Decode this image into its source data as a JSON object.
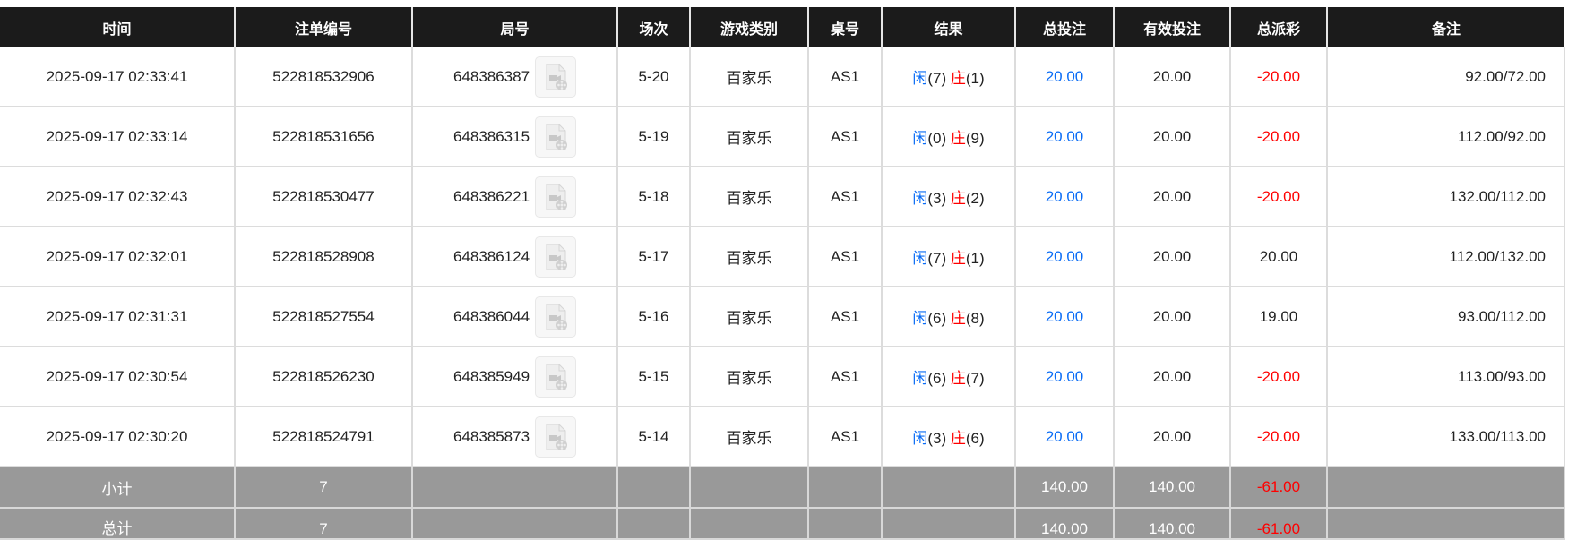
{
  "headers": [
    "时间",
    "注单编号",
    "局号",
    "场次",
    "游戏类别",
    "桌号",
    "结果",
    "总投注",
    "有效投注",
    "总派彩",
    "备注"
  ],
  "colors": {
    "header_bg": "#1b1b1b",
    "player": "#0a6cf5",
    "banker": "#ff0000",
    "negative": "#ff0000",
    "summary_bg": "#999999"
  },
  "rows": [
    {
      "time": "2025-09-17 02:33:41",
      "bet_id": "522818532906",
      "round": "648386387",
      "shoe": "5-20",
      "game": "百家乐",
      "table": "AS1",
      "p_label": "闲",
      "p_val": "(7)",
      "b_label": "庄",
      "b_val": "(1)",
      "total_bet": "20.00",
      "valid_bet": "20.00",
      "payout": "-20.00",
      "payout_negative": true,
      "note": "92.00/72.00",
      "icon": "video-file-icon"
    },
    {
      "time": "2025-09-17 02:33:14",
      "bet_id": "522818531656",
      "round": "648386315",
      "shoe": "5-19",
      "game": "百家乐",
      "table": "AS1",
      "p_label": "闲",
      "p_val": "(0)",
      "b_label": "庄",
      "b_val": "(9)",
      "total_bet": "20.00",
      "valid_bet": "20.00",
      "payout": "-20.00",
      "payout_negative": true,
      "note": "112.00/92.00",
      "icon": "video-file-icon"
    },
    {
      "time": "2025-09-17 02:32:43",
      "bet_id": "522818530477",
      "round": "648386221",
      "shoe": "5-18",
      "game": "百家乐",
      "table": "AS1",
      "p_label": "闲",
      "p_val": "(3)",
      "b_label": "庄",
      "b_val": "(2)",
      "total_bet": "20.00",
      "valid_bet": "20.00",
      "payout": "-20.00",
      "payout_negative": true,
      "note": "132.00/112.00",
      "icon": "video-file-icon"
    },
    {
      "time": "2025-09-17 02:32:01",
      "bet_id": "522818528908",
      "round": "648386124",
      "shoe": "5-17",
      "game": "百家乐",
      "table": "AS1",
      "p_label": "闲",
      "p_val": "(7)",
      "b_label": "庄",
      "b_val": "(1)",
      "total_bet": "20.00",
      "valid_bet": "20.00",
      "payout": "20.00",
      "payout_negative": false,
      "note": "112.00/132.00",
      "icon": "video-file-icon"
    },
    {
      "time": "2025-09-17 02:31:31",
      "bet_id": "522818527554",
      "round": "648386044",
      "shoe": "5-16",
      "game": "百家乐",
      "table": "AS1",
      "p_label": "闲",
      "p_val": "(6)",
      "b_label": "庄",
      "b_val": "(8)",
      "total_bet": "20.00",
      "valid_bet": "20.00",
      "payout": "19.00",
      "payout_negative": false,
      "note": "93.00/112.00",
      "icon": "video-file-icon"
    },
    {
      "time": "2025-09-17 02:30:54",
      "bet_id": "522818526230",
      "round": "648385949",
      "shoe": "5-15",
      "game": "百家乐",
      "table": "AS1",
      "p_label": "闲",
      "p_val": "(6)",
      "b_label": "庄",
      "b_val": "(7)",
      "total_bet": "20.00",
      "valid_bet": "20.00",
      "payout": "-20.00",
      "payout_negative": true,
      "note": "113.00/93.00",
      "icon": "video-file-icon"
    },
    {
      "time": "2025-09-17 02:30:20",
      "bet_id": "522818524791",
      "round": "648385873",
      "shoe": "5-14",
      "game": "百家乐",
      "table": "AS1",
      "p_label": "闲",
      "p_val": "(3)",
      "b_label": "庄",
      "b_val": "(6)",
      "total_bet": "20.00",
      "valid_bet": "20.00",
      "payout": "-20.00",
      "payout_negative": true,
      "note": "133.00/113.00",
      "icon": "video-file-icon"
    }
  ],
  "subtotal": {
    "label": "小计",
    "count": "7",
    "total_bet": "140.00",
    "valid_bet": "140.00",
    "payout": "-61.00"
  },
  "total": {
    "label": "总计",
    "count": "7",
    "total_bet": "140.00",
    "valid_bet": "140.00",
    "payout": "-61.00"
  }
}
